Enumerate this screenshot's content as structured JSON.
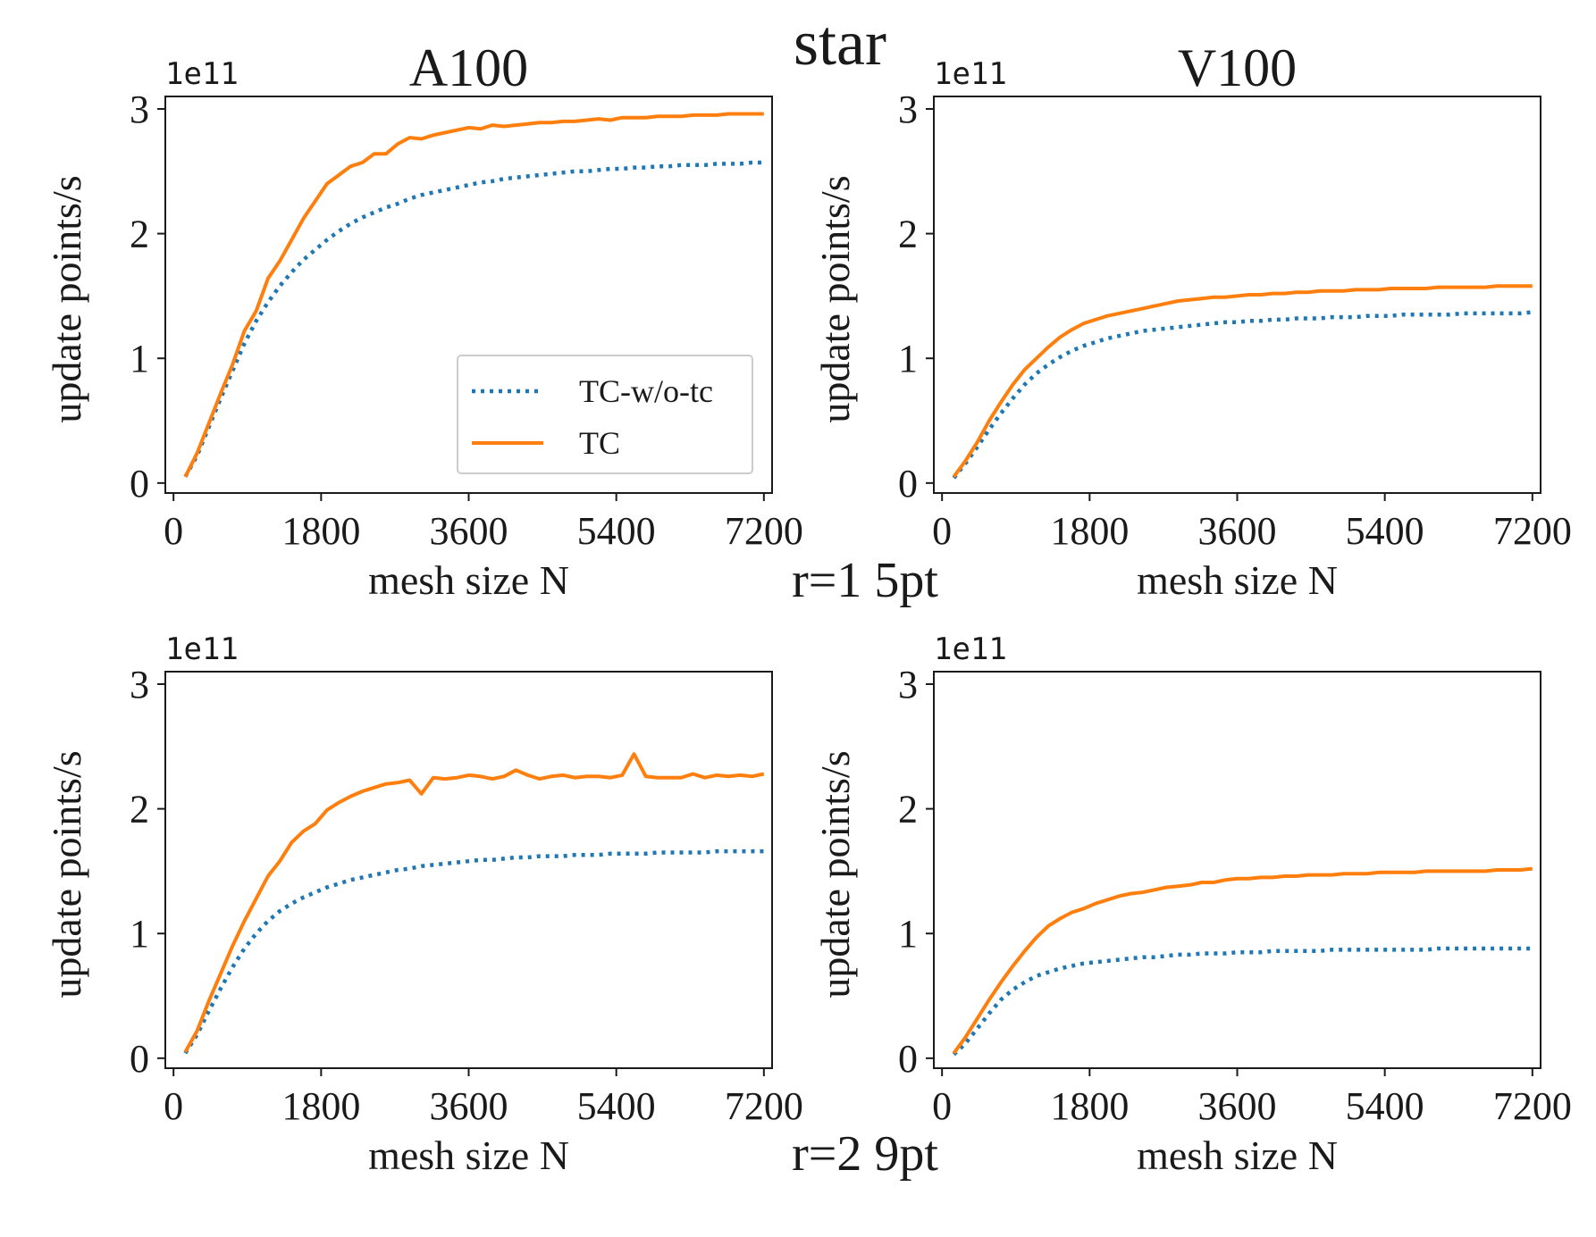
{
  "figure": {
    "title": "star",
    "row_labels": [
      "r=1 5pt",
      "r=2 9pt"
    ]
  },
  "chart_data": [
    {
      "type": "line",
      "title": "A100",
      "row_label": "r=1 5pt",
      "xlabel": "mesh size N",
      "ylabel": "update points/s",
      "offset_text": "1e11",
      "xlim": [
        -100,
        7300
      ],
      "ylim": [
        -0.08,
        3.1
      ],
      "xticks": [
        0,
        1800,
        3600,
        5400,
        7200
      ],
      "yticks": [
        0,
        1,
        2,
        3
      ],
      "grid": false,
      "legend": "lower-right",
      "series": [
        {
          "name": "TC-w/o-tc",
          "color": "#1f77b4",
          "style": "dotted",
          "x": [
            144,
            288,
            432,
            576,
            720,
            864,
            1008,
            1152,
            1296,
            1440,
            1584,
            1728,
            1872,
            2016,
            2160,
            2304,
            2448,
            2592,
            2736,
            2880,
            3024,
            3168,
            3312,
            3456,
            3600,
            3744,
            3888,
            4032,
            4176,
            4320,
            4464,
            4608,
            4752,
            4896,
            5040,
            5184,
            5328,
            5472,
            5616,
            5760,
            5904,
            6048,
            6192,
            6336,
            6480,
            6624,
            6768,
            6912,
            7056,
            7200
          ],
          "y": [
            0.05,
            0.22,
            0.45,
            0.68,
            0.9,
            1.12,
            1.3,
            1.45,
            1.58,
            1.69,
            1.79,
            1.87,
            1.95,
            2.02,
            2.08,
            2.13,
            2.17,
            2.21,
            2.24,
            2.28,
            2.31,
            2.33,
            2.35,
            2.37,
            2.39,
            2.41,
            2.42,
            2.44,
            2.45,
            2.46,
            2.47,
            2.48,
            2.49,
            2.5,
            2.5,
            2.51,
            2.52,
            2.52,
            2.53,
            2.53,
            2.54,
            2.54,
            2.55,
            2.55,
            2.55,
            2.56,
            2.56,
            2.56,
            2.57,
            2.57
          ]
        },
        {
          "name": "TC",
          "color": "#ff7f0e",
          "style": "solid",
          "x": [
            144,
            288,
            432,
            576,
            720,
            864,
            1008,
            1152,
            1296,
            1440,
            1584,
            1728,
            1872,
            2016,
            2160,
            2304,
            2448,
            2592,
            2736,
            2880,
            3024,
            3168,
            3312,
            3456,
            3600,
            3744,
            3888,
            4032,
            4176,
            4320,
            4464,
            4608,
            4752,
            4896,
            5040,
            5184,
            5328,
            5472,
            5616,
            5760,
            5904,
            6048,
            6192,
            6336,
            6480,
            6624,
            6768,
            6912,
            7056,
            7200
          ],
          "y": [
            0.05,
            0.24,
            0.48,
            0.72,
            0.95,
            1.22,
            1.38,
            1.64,
            1.78,
            1.95,
            2.12,
            2.26,
            2.4,
            2.47,
            2.54,
            2.57,
            2.64,
            2.64,
            2.72,
            2.77,
            2.76,
            2.79,
            2.81,
            2.83,
            2.85,
            2.84,
            2.87,
            2.86,
            2.87,
            2.88,
            2.89,
            2.89,
            2.9,
            2.9,
            2.91,
            2.92,
            2.91,
            2.93,
            2.93,
            2.93,
            2.94,
            2.94,
            2.94,
            2.95,
            2.95,
            2.95,
            2.96,
            2.96,
            2.96,
            2.96
          ]
        }
      ]
    },
    {
      "type": "line",
      "title": "V100",
      "row_label": "r=1 5pt",
      "xlabel": "mesh size N",
      "ylabel": "update points/s",
      "offset_text": "1e11",
      "xlim": [
        -100,
        7300
      ],
      "ylim": [
        -0.08,
        3.1
      ],
      "xticks": [
        0,
        1800,
        3600,
        5400,
        7200
      ],
      "yticks": [
        0,
        1,
        2,
        3
      ],
      "grid": false,
      "legend": "none",
      "series": [
        {
          "name": "TC-w/o-tc",
          "color": "#1f77b4",
          "style": "dotted",
          "x": [
            144,
            288,
            432,
            576,
            720,
            864,
            1008,
            1152,
            1296,
            1440,
            1584,
            1728,
            1872,
            2016,
            2160,
            2304,
            2448,
            2592,
            2736,
            2880,
            3024,
            3168,
            3312,
            3456,
            3600,
            3744,
            3888,
            4032,
            4176,
            4320,
            4464,
            4608,
            4752,
            4896,
            5040,
            5184,
            5328,
            5472,
            5616,
            5760,
            5904,
            6048,
            6192,
            6336,
            6480,
            6624,
            6768,
            6912,
            7056,
            7200
          ],
          "y": [
            0.04,
            0.16,
            0.29,
            0.43,
            0.56,
            0.68,
            0.79,
            0.88,
            0.95,
            1.01,
            1.06,
            1.1,
            1.13,
            1.16,
            1.18,
            1.2,
            1.22,
            1.23,
            1.24,
            1.25,
            1.26,
            1.27,
            1.28,
            1.29,
            1.29,
            1.3,
            1.3,
            1.31,
            1.31,
            1.32,
            1.32,
            1.32,
            1.33,
            1.33,
            1.33,
            1.34,
            1.34,
            1.34,
            1.35,
            1.35,
            1.35,
            1.35,
            1.35,
            1.36,
            1.36,
            1.36,
            1.36,
            1.36,
            1.36,
            1.37
          ]
        },
        {
          "name": "TC",
          "color": "#ff7f0e",
          "style": "solid",
          "x": [
            144,
            288,
            432,
            576,
            720,
            864,
            1008,
            1152,
            1296,
            1440,
            1584,
            1728,
            1872,
            2016,
            2160,
            2304,
            2448,
            2592,
            2736,
            2880,
            3024,
            3168,
            3312,
            3456,
            3600,
            3744,
            3888,
            4032,
            4176,
            4320,
            4464,
            4608,
            4752,
            4896,
            5040,
            5184,
            5328,
            5472,
            5616,
            5760,
            5904,
            6048,
            6192,
            6336,
            6480,
            6624,
            6768,
            6912,
            7056,
            7200
          ],
          "y": [
            0.05,
            0.18,
            0.33,
            0.5,
            0.65,
            0.79,
            0.91,
            1.0,
            1.09,
            1.17,
            1.23,
            1.28,
            1.31,
            1.34,
            1.36,
            1.38,
            1.4,
            1.42,
            1.44,
            1.46,
            1.47,
            1.48,
            1.49,
            1.49,
            1.5,
            1.51,
            1.51,
            1.52,
            1.52,
            1.53,
            1.53,
            1.54,
            1.54,
            1.54,
            1.55,
            1.55,
            1.55,
            1.56,
            1.56,
            1.56,
            1.56,
            1.57,
            1.57,
            1.57,
            1.57,
            1.57,
            1.58,
            1.58,
            1.58,
            1.58
          ]
        }
      ]
    },
    {
      "type": "line",
      "title": "",
      "row_label": "r=2 9pt",
      "xlabel": "mesh size N",
      "ylabel": "update points/s",
      "offset_text": "1e11",
      "xlim": [
        -100,
        7300
      ],
      "ylim": [
        -0.08,
        3.1
      ],
      "xticks": [
        0,
        1800,
        3600,
        5400,
        7200
      ],
      "yticks": [
        0,
        1,
        2,
        3
      ],
      "grid": false,
      "legend": "none",
      "series": [
        {
          "name": "TC-w/o-tc",
          "color": "#1f77b4",
          "style": "dotted",
          "x": [
            144,
            288,
            432,
            576,
            720,
            864,
            1008,
            1152,
            1296,
            1440,
            1584,
            1728,
            1872,
            2016,
            2160,
            2304,
            2448,
            2592,
            2736,
            2880,
            3024,
            3168,
            3312,
            3456,
            3600,
            3744,
            3888,
            4032,
            4176,
            4320,
            4464,
            4608,
            4752,
            4896,
            5040,
            5184,
            5328,
            5472,
            5616,
            5760,
            5904,
            6048,
            6192,
            6336,
            6480,
            6624,
            6768,
            6912,
            7056,
            7200
          ],
          "y": [
            0.04,
            0.19,
            0.38,
            0.56,
            0.73,
            0.88,
            1.0,
            1.1,
            1.18,
            1.24,
            1.29,
            1.33,
            1.37,
            1.4,
            1.43,
            1.45,
            1.47,
            1.49,
            1.51,
            1.52,
            1.54,
            1.55,
            1.56,
            1.57,
            1.58,
            1.59,
            1.59,
            1.6,
            1.61,
            1.61,
            1.62,
            1.62,
            1.62,
            1.63,
            1.63,
            1.63,
            1.64,
            1.64,
            1.64,
            1.64,
            1.65,
            1.65,
            1.65,
            1.65,
            1.65,
            1.66,
            1.66,
            1.66,
            1.66,
            1.66
          ]
        },
        {
          "name": "TC",
          "color": "#ff7f0e",
          "style": "solid",
          "x": [
            144,
            288,
            432,
            576,
            720,
            864,
            1008,
            1152,
            1296,
            1440,
            1584,
            1728,
            1872,
            2016,
            2160,
            2304,
            2448,
            2592,
            2736,
            2880,
            3024,
            3168,
            3312,
            3456,
            3600,
            3744,
            3888,
            4032,
            4176,
            4320,
            4464,
            4608,
            4752,
            4896,
            5040,
            5184,
            5328,
            5472,
            5616,
            5760,
            5904,
            6048,
            6192,
            6336,
            6480,
            6624,
            6768,
            6912,
            7056,
            7200
          ],
          "y": [
            0.05,
            0.22,
            0.46,
            0.68,
            0.9,
            1.1,
            1.28,
            1.46,
            1.58,
            1.73,
            1.82,
            1.88,
            1.99,
            2.05,
            2.1,
            2.14,
            2.17,
            2.2,
            2.21,
            2.23,
            2.12,
            2.25,
            2.24,
            2.25,
            2.27,
            2.26,
            2.24,
            2.26,
            2.31,
            2.27,
            2.24,
            2.26,
            2.27,
            2.25,
            2.26,
            2.26,
            2.25,
            2.27,
            2.44,
            2.26,
            2.25,
            2.25,
            2.25,
            2.28,
            2.25,
            2.27,
            2.26,
            2.27,
            2.26,
            2.28
          ]
        }
      ]
    },
    {
      "type": "line",
      "title": "",
      "row_label": "r=2 9pt",
      "xlabel": "mesh size N",
      "ylabel": "update points/s",
      "offset_text": "1e11",
      "xlim": [
        -100,
        7300
      ],
      "ylim": [
        -0.08,
        3.1
      ],
      "xticks": [
        0,
        1800,
        3600,
        5400,
        7200
      ],
      "yticks": [
        0,
        1,
        2,
        3
      ],
      "grid": false,
      "legend": "none",
      "series": [
        {
          "name": "TC-w/o-tc",
          "color": "#1f77b4",
          "style": "dotted",
          "x": [
            144,
            288,
            432,
            576,
            720,
            864,
            1008,
            1152,
            1296,
            1440,
            1584,
            1728,
            1872,
            2016,
            2160,
            2304,
            2448,
            2592,
            2736,
            2880,
            3024,
            3168,
            3312,
            3456,
            3600,
            3744,
            3888,
            4032,
            4176,
            4320,
            4464,
            4608,
            4752,
            4896,
            5040,
            5184,
            5328,
            5472,
            5616,
            5760,
            5904,
            6048,
            6192,
            6336,
            6480,
            6624,
            6768,
            6912,
            7056,
            7200
          ],
          "y": [
            0.03,
            0.12,
            0.24,
            0.36,
            0.47,
            0.55,
            0.61,
            0.66,
            0.69,
            0.72,
            0.74,
            0.76,
            0.77,
            0.78,
            0.79,
            0.8,
            0.81,
            0.81,
            0.82,
            0.83,
            0.83,
            0.84,
            0.84,
            0.84,
            0.85,
            0.85,
            0.85,
            0.86,
            0.86,
            0.86,
            0.86,
            0.86,
            0.87,
            0.87,
            0.87,
            0.87,
            0.87,
            0.87,
            0.87,
            0.87,
            0.87,
            0.88,
            0.88,
            0.88,
            0.88,
            0.88,
            0.88,
            0.88,
            0.88,
            0.88
          ]
        },
        {
          "name": "TC",
          "color": "#ff7f0e",
          "style": "solid",
          "x": [
            144,
            288,
            432,
            576,
            720,
            864,
            1008,
            1152,
            1296,
            1440,
            1584,
            1728,
            1872,
            2016,
            2160,
            2304,
            2448,
            2592,
            2736,
            2880,
            3024,
            3168,
            3312,
            3456,
            3600,
            3744,
            3888,
            4032,
            4176,
            4320,
            4464,
            4608,
            4752,
            4896,
            5040,
            5184,
            5328,
            5472,
            5616,
            5760,
            5904,
            6048,
            6192,
            6336,
            6480,
            6624,
            6768,
            6912,
            7056,
            7200
          ],
          "y": [
            0.04,
            0.17,
            0.32,
            0.47,
            0.61,
            0.74,
            0.86,
            0.97,
            1.06,
            1.12,
            1.17,
            1.2,
            1.24,
            1.27,
            1.3,
            1.32,
            1.33,
            1.35,
            1.37,
            1.38,
            1.39,
            1.41,
            1.41,
            1.43,
            1.44,
            1.44,
            1.45,
            1.45,
            1.46,
            1.46,
            1.47,
            1.47,
            1.47,
            1.48,
            1.48,
            1.48,
            1.49,
            1.49,
            1.49,
            1.49,
            1.5,
            1.5,
            1.5,
            1.5,
            1.5,
            1.5,
            1.51,
            1.51,
            1.51,
            1.52
          ]
        }
      ]
    }
  ]
}
